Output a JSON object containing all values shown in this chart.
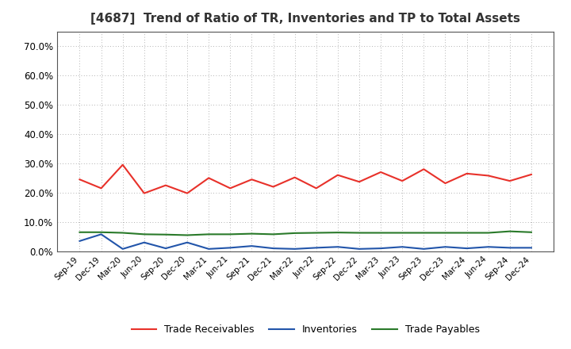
{
  "title": "[4687]  Trend of Ratio of TR, Inventories and TP to Total Assets",
  "x_labels": [
    "Sep-19",
    "Dec-19",
    "Mar-20",
    "Jun-20",
    "Sep-20",
    "Dec-20",
    "Mar-21",
    "Jun-21",
    "Sep-21",
    "Dec-21",
    "Mar-22",
    "Jun-22",
    "Sep-22",
    "Dec-22",
    "Mar-23",
    "Jun-23",
    "Sep-23",
    "Dec-23",
    "Mar-24",
    "Jun-24",
    "Sep-24",
    "Dec-24"
  ],
  "trade_receivables": [
    0.245,
    0.215,
    0.295,
    0.198,
    0.225,
    0.198,
    0.25,
    0.215,
    0.245,
    0.22,
    0.252,
    0.215,
    0.26,
    0.237,
    0.27,
    0.24,
    0.28,
    0.232,
    0.265,
    0.258,
    0.24,
    0.262
  ],
  "inventories": [
    0.035,
    0.058,
    0.008,
    0.03,
    0.01,
    0.03,
    0.008,
    0.012,
    0.018,
    0.01,
    0.008,
    0.012,
    0.015,
    0.008,
    0.01,
    0.015,
    0.008,
    0.015,
    0.01,
    0.015,
    0.012,
    0.012
  ],
  "trade_payables": [
    0.065,
    0.065,
    0.063,
    0.058,
    0.057,
    0.055,
    0.058,
    0.058,
    0.06,
    0.058,
    0.062,
    0.063,
    0.064,
    0.063,
    0.063,
    0.063,
    0.063,
    0.063,
    0.063,
    0.063,
    0.068,
    0.065
  ],
  "tr_color": "#e8312a",
  "inv_color": "#2255aa",
  "tp_color": "#2a7a2a",
  "ylim": [
    0.0,
    0.75
  ],
  "yticks": [
    0.0,
    0.1,
    0.2,
    0.3,
    0.4,
    0.5,
    0.6,
    0.7
  ],
  "background_color": "#ffffff",
  "grid_color": "#999999",
  "legend_labels": [
    "Trade Receivables",
    "Inventories",
    "Trade Payables"
  ]
}
